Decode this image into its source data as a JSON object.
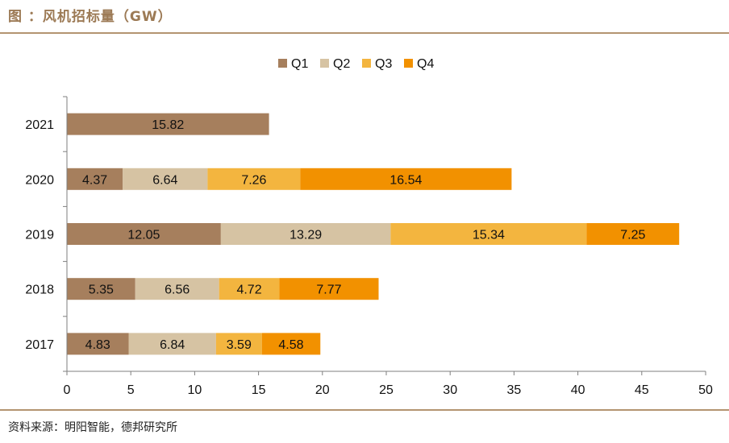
{
  "header": {
    "title": "图  ：风机招标量（GW）"
  },
  "footer": {
    "source": "资料来源：明阳智能，德邦研究所"
  },
  "chart_data": {
    "type": "bar",
    "orientation": "horizontal",
    "stacked": true,
    "categories": [
      "2021",
      "2020",
      "2019",
      "2018",
      "2017"
    ],
    "series": [
      {
        "name": "Q1",
        "color": "#a67f5d",
        "values": [
          15.82,
          4.37,
          12.05,
          5.35,
          4.83
        ]
      },
      {
        "name": "Q2",
        "color": "#d6c3a3",
        "values": [
          null,
          6.64,
          13.29,
          6.56,
          6.84
        ]
      },
      {
        "name": "Q3",
        "color": "#f3b53f",
        "values": [
          null,
          7.26,
          15.34,
          4.72,
          3.59
        ]
      },
      {
        "name": "Q4",
        "color": "#f29100",
        "values": [
          null,
          16.54,
          7.25,
          7.77,
          4.58
        ]
      }
    ],
    "xlim": [
      0,
      50
    ],
    "xticks": [
      0,
      5,
      10,
      15,
      20,
      25,
      30,
      35,
      40,
      45,
      50
    ],
    "legend": "top-center",
    "grid": false
  }
}
